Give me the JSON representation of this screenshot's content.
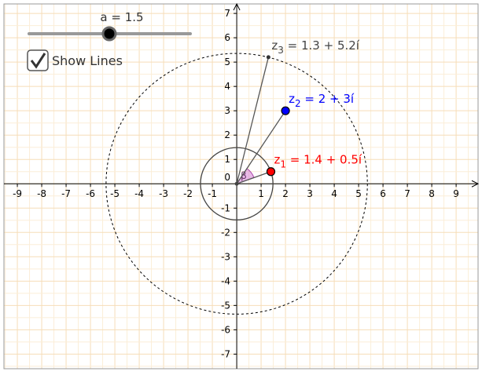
{
  "slider": {
    "label": "a = 1.5"
  },
  "checkbox": {
    "label": "Show Lines",
    "checked": true
  },
  "graph": {
    "xlim": [
      -9.55,
      9.9
    ],
    "ylim": [
      -7.6,
      7.39
    ],
    "xticks": [
      -9,
      -8,
      -7,
      -6,
      -5,
      -4,
      -3,
      -2,
      -1,
      1,
      2,
      3,
      4,
      5,
      6,
      7,
      8,
      9
    ],
    "yticks": [
      -7,
      -6,
      -5,
      -4,
      -3,
      -2,
      -1,
      1,
      2,
      3,
      4,
      5,
      6,
      7
    ],
    "origin_label": "0",
    "grid": true,
    "angle_label": "β",
    "points": [
      {
        "name": "z",
        "sub": "1",
        "expr": " = 1.4 + 0.5í",
        "re": 1.4,
        "im": 0.5,
        "color": "#ff0000"
      },
      {
        "name": "z",
        "sub": "2",
        "expr": " = 2 + 3í",
        "re": 2,
        "im": 3,
        "color": "#0000ff"
      },
      {
        "name": "z",
        "sub": "3",
        "expr": " = 1.3 + 5.2í",
        "re": 1.3,
        "im": 5.2,
        "color": "#444444"
      }
    ]
  }
}
